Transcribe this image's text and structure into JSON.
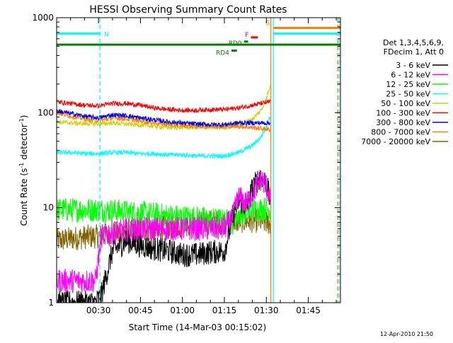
{
  "chart_data": {
    "type": "line",
    "title": "HESSI Observing Summary Count Rates",
    "xlabel": "Start Time (14-Mar-03 00:15:02)",
    "ylabel_main": "Count Rate (s",
    "ylabel_sup1": "-1",
    "ylabel_mid": " detector",
    "ylabel_sup2": "-1",
    "ylabel_end": ")",
    "yscale": "log",
    "xlim_min": [
      15.03,
      116.5
    ],
    "ylim": [
      1,
      1000
    ],
    "x_tick_labels": [
      "00:30",
      "00:45",
      "01:00",
      "01:15",
      "01:30",
      "01:45"
    ],
    "x_tick_values": [
      30,
      45,
      60,
      75,
      90,
      105
    ],
    "y_tick_labels": [
      "1",
      "10",
      "100",
      "1000"
    ],
    "y_tick_values": [
      1,
      10,
      100,
      1000
    ],
    "timestamp": "12-Apr-2010 21:50",
    "legend_header": [
      "Det 1,3,4,5,6,9,",
      "FDecim 1, Att 0"
    ],
    "series": [
      {
        "name": "3 - 6 keV",
        "color": "#000000",
        "x": [
          15,
          29,
          31,
          35,
          40,
          45,
          50,
          55,
          60,
          65,
          70,
          75,
          78,
          80,
          83,
          85,
          88,
          90,
          91.5
        ],
        "y": [
          1,
          1,
          1.2,
          3.5,
          4.5,
          4.0,
          3.7,
          3.5,
          3.2,
          3.2,
          3.4,
          3.5,
          8,
          12,
          10,
          16,
          22,
          18,
          12
        ]
      },
      {
        "name": "6 - 12 keV",
        "color": "#ff00ff",
        "x": [
          15,
          29,
          31,
          35,
          40,
          45,
          50,
          55,
          60,
          65,
          70,
          75,
          78,
          80,
          83,
          85,
          88,
          90,
          91.5
        ],
        "y": [
          1.7,
          1.7,
          5,
          5.5,
          5.8,
          6,
          6,
          6,
          6,
          6,
          6,
          6,
          8,
          13,
          11,
          14,
          20,
          17,
          12
        ]
      },
      {
        "name": "12 - 25 keV",
        "color": "#00ff00",
        "x": [
          15,
          30,
          35,
          40,
          45,
          50,
          55,
          60,
          65,
          70,
          75,
          78,
          80,
          85,
          90,
          91.5
        ],
        "y": [
          9.5,
          9.5,
          9.3,
          9.0,
          8.8,
          8.5,
          8.2,
          8.0,
          7.8,
          7.5,
          7.3,
          7.0,
          8.5,
          9.5,
          9.8,
          9.5
        ]
      },
      {
        "name": "25 - 50 keV",
        "color": "#00ffff",
        "x": [
          15,
          20,
          25,
          30,
          35,
          40,
          45,
          50,
          55,
          60,
          65,
          70,
          75,
          80,
          85,
          88,
          90,
          91.5
        ],
        "y": [
          38,
          38,
          37,
          37,
          38,
          38,
          37,
          37,
          36,
          36,
          35,
          35,
          35,
          38,
          45,
          55,
          70,
          95
        ]
      },
      {
        "name": "50 - 100 keV",
        "color": "#d0d000",
        "x": [
          15,
          20,
          25,
          30,
          35,
          40,
          45,
          50,
          55,
          60,
          65,
          70,
          75,
          80,
          85,
          88,
          90,
          91.5
        ],
        "y": [
          80,
          78,
          77,
          76,
          78,
          76,
          74,
          72,
          70,
          70,
          70,
          70,
          70,
          75,
          85,
          105,
          140,
          200
        ]
      },
      {
        "name": "100 - 300 keV",
        "color": "#ff0000",
        "x": [
          15,
          20,
          25,
          30,
          35,
          40,
          45,
          50,
          55,
          60,
          65,
          70,
          75,
          80,
          85,
          88,
          90,
          91.5
        ],
        "y": [
          130,
          125,
          120,
          118,
          125,
          125,
          120,
          112,
          108,
          106,
          106,
          108,
          108,
          112,
          120,
          125,
          128,
          130
        ]
      },
      {
        "name": "300 - 800 keV",
        "color": "#0000ff",
        "x": [
          15,
          20,
          25,
          30,
          35,
          40,
          45,
          50,
          55,
          60,
          65,
          70,
          75,
          80,
          85,
          88,
          90,
          91.5
        ],
        "y": [
          105,
          98,
          92,
          88,
          95,
          93,
          88,
          84,
          80,
          78,
          76,
          75,
          75,
          78,
          78,
          78,
          78,
          78
        ]
      },
      {
        "name": "800 - 7000 keV",
        "color": "#ff8000",
        "x": [
          15,
          20,
          25,
          30,
          35,
          40,
          45,
          50,
          55,
          60,
          65,
          70,
          75,
          80,
          85,
          88,
          90,
          91.5
        ],
        "y": [
          100,
          92,
          86,
          82,
          88,
          86,
          82,
          78,
          75,
          74,
          72,
          72,
          72,
          72,
          70,
          68,
          67,
          66
        ]
      },
      {
        "name": "7000 - 20000 keV",
        "color": "#806000",
        "x": [
          15,
          20,
          25,
          30,
          35,
          40,
          45,
          50,
          55,
          60,
          65,
          70,
          75,
          80,
          85,
          88,
          90,
          91.5
        ],
        "y": [
          4.5,
          4.7,
          4.9,
          5.0,
          5.3,
          5.6,
          5.8,
          6.0,
          6.3,
          6.6,
          6.8,
          7.0,
          7.0,
          7.2,
          7.3,
          7.2,
          7.0,
          6.8
        ]
      }
    ],
    "flag_bars": [
      {
        "label": "N",
        "color": "#00ffff",
        "x": [
          15.03,
          30.5
        ],
        "y": 680
      },
      {
        "label": "",
        "color": "#008000",
        "x": [
          15.03,
          116.5
        ],
        "y": 520
      },
      {
        "label": "F",
        "color": "#ff0000",
        "x": [
          84.5,
          87
        ],
        "y": 620
      },
      {
        "label": "RD0",
        "color": "#008000",
        "x": [
          82,
          83.5
        ],
        "y": 560
      },
      {
        "label": "RD4",
        "color": "#008000",
        "x": [
          77.5,
          79.5
        ],
        "y": 450
      },
      {
        "label": "S",
        "color": "#ff8000",
        "x": [
          92.5,
          116.5
        ],
        "y": 780
      },
      {
        "label": "",
        "color": "#00ffff",
        "x": [
          92.5,
          116.5
        ],
        "y": 680
      }
    ],
    "vlines": [
      {
        "x": 30.5,
        "color": "#00ffff",
        "dashed": true
      },
      {
        "x": 91.6,
        "color": "#ff8000",
        "dashed": false
      },
      {
        "x": 92.5,
        "color": "#00ffff",
        "dashed": false
      },
      {
        "x": 115.5,
        "color": "#ff8000",
        "dashed": true
      },
      {
        "x": 116.0,
        "color": "#00ffff",
        "dashed": true
      }
    ],
    "grid": false,
    "legend_position": "right"
  }
}
